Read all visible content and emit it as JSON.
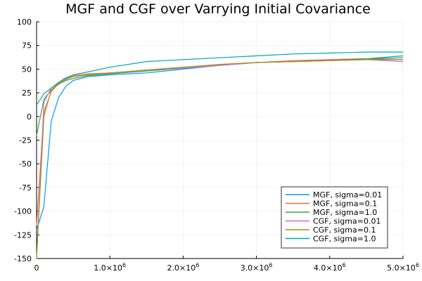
{
  "chart_data": {
    "type": "line",
    "title": "MGF and CGF over Varrying Initial Covariance",
    "xlabel": "",
    "ylabel": "",
    "xlim": [
      0,
      5000000
    ],
    "ylim": [
      -150,
      100
    ],
    "x_ticks": [
      0,
      1000000,
      2000000,
      3000000,
      4000000,
      5000000
    ],
    "x_tick_labels": [
      "0",
      "1.0×10",
      "2.0×10",
      "3.0×10",
      "4.0×10",
      "5.0×10"
    ],
    "x_tick_exponent": "6",
    "y_ticks": [
      -150,
      -125,
      -100,
      -75,
      -50,
      -25,
      0,
      25,
      50,
      75,
      100
    ],
    "y_tick_labels": [
      "-150",
      "-125",
      "-100",
      "-75",
      "-50",
      "-25",
      "0",
      "25",
      "50",
      "75",
      "100"
    ],
    "grid": true,
    "legend_position": "bottom-right",
    "x": [
      0,
      100000,
      200000,
      300000,
      400000,
      500000,
      700000,
      1000000,
      1500000,
      2000000,
      2500000,
      3000000,
      3500000,
      4000000,
      4500000,
      5000000
    ],
    "series": [
      {
        "name": "MGF, sigma=0.01",
        "color": "#009AFA",
        "values": [
          -120,
          -95,
          -5,
          20,
          32,
          38,
          42,
          44,
          46,
          50,
          54,
          57,
          58,
          60,
          61,
          64
        ]
      },
      {
        "name": "MGF, sigma=0.1",
        "color": "#E36F47",
        "values": [
          -115,
          5,
          26,
          35,
          40,
          43,
          45,
          46,
          49,
          52,
          55,
          57,
          59,
          60,
          61,
          60
        ]
      },
      {
        "name": "MGF, sigma=1.0",
        "color": "#3EA44E",
        "values": [
          -20,
          18,
          28,
          34,
          38,
          40,
          43,
          45,
          48,
          51,
          54,
          57,
          58,
          59,
          61,
          62
        ]
      },
      {
        "name": "CGF, sigma=0.01",
        "color": "#C371D2",
        "values": [
          -150,
          15,
          30,
          36,
          40,
          42,
          44,
          46,
          49,
          51,
          54,
          57,
          58,
          59,
          60,
          58
        ]
      },
      {
        "name": "CGF, sigma=0.1",
        "color": "#AC8D18",
        "values": [
          -150,
          0,
          28,
          35,
          39,
          42,
          44,
          46,
          49,
          52,
          55,
          57,
          58,
          59,
          60,
          60
        ]
      },
      {
        "name": "CGF, sigma=1.0",
        "color": "#00A9AD",
        "values": [
          12,
          24,
          30,
          36,
          41,
          44,
          47,
          52,
          58,
          60,
          62,
          64,
          66,
          67,
          68,
          68
        ]
      }
    ]
  }
}
